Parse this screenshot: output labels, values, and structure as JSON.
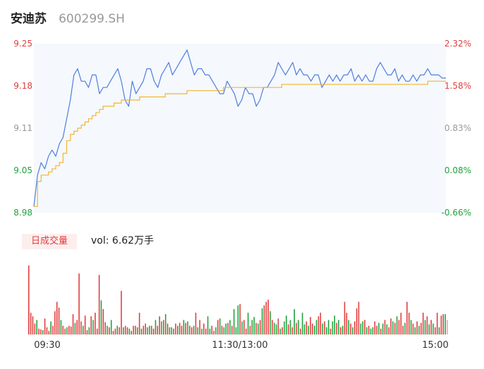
{
  "header": {
    "name": "安迪苏",
    "code": "600299.SH"
  },
  "volume_panel": {
    "tab_label": "日成交量",
    "vol_prefix": "vol:",
    "vol_value": "6.62万手"
  },
  "colors": {
    "price_line": "#4e7ee0",
    "avg_line": "#f2b632",
    "up": "#e23c3c",
    "down": "#1fa33d",
    "area_fill": "#f5f8fd",
    "axis_text": "#999999"
  },
  "chart_data": [
    {
      "type": "line",
      "title": "",
      "x_ticks": [
        "09:30",
        "11:30/13:00",
        "15:00"
      ],
      "y_left_ticks": [
        "9.25",
        "9.18",
        "9.11",
        "9.05",
        "8.98"
      ],
      "y_right_ticks": [
        "2.32%",
        "1.58%",
        "0.83%",
        "0.08%",
        "-0.66%"
      ],
      "ylim": [
        8.98,
        9.25
      ],
      "series": [
        {
          "values": [
            8.99,
            9.04,
            9.06,
            9.05,
            9.07,
            9.08,
            9.07,
            9.09,
            9.1,
            9.13,
            9.16,
            9.2,
            9.21,
            9.19,
            9.19,
            9.18,
            9.2,
            9.2,
            9.17,
            9.18,
            9.18,
            9.19,
            9.2,
            9.21,
            9.19,
            9.16,
            9.15,
            9.19,
            9.17,
            9.18,
            9.19,
            9.21,
            9.21,
            9.19,
            9.18,
            9.2,
            9.21,
            9.22,
            9.2,
            9.21,
            9.22,
            9.23,
            9.24,
            9.22,
            9.2,
            9.21,
            9.21,
            9.2,
            9.2,
            9.19,
            9.18,
            9.17,
            9.17,
            9.19,
            9.18,
            9.17,
            9.15,
            9.16,
            9.18,
            9.17,
            9.17,
            9.15,
            9.16,
            9.18,
            9.18,
            9.19,
            9.2,
            9.22,
            9.21,
            9.2,
            9.21,
            9.22,
            9.2,
            9.21,
            9.2,
            9.2,
            9.19,
            9.2,
            9.2,
            9.18,
            9.19,
            9.2,
            9.19,
            9.2,
            9.19,
            9.2,
            9.2,
            9.21,
            9.19,
            9.2,
            9.19,
            9.2,
            9.19,
            9.19,
            9.21,
            9.22,
            9.21,
            9.2,
            9.2,
            9.21,
            9.19,
            9.2,
            9.19,
            9.19,
            9.2,
            9.19,
            9.2,
            9.2,
            9.21,
            9.2,
            9.2,
            9.2,
            9.195,
            9.195
          ]
        },
        {
          "values": [
            8.99,
            9.03,
            9.04,
            9.04,
            9.045,
            9.05,
            9.055,
            9.06,
            9.075,
            9.095,
            9.105,
            9.11,
            9.115,
            9.12,
            9.125,
            9.13,
            9.135,
            9.14,
            9.145,
            9.15,
            9.15,
            9.15,
            9.155,
            9.155,
            9.16,
            9.16,
            9.16,
            9.16,
            9.16,
            9.165,
            9.165,
            9.165,
            9.165,
            9.165,
            9.165,
            9.165,
            9.17,
            9.17,
            9.17,
            9.17,
            9.17,
            9.17,
            9.175,
            9.175,
            9.175,
            9.175,
            9.175,
            9.175,
            9.175,
            9.175,
            9.175,
            9.175,
            9.18,
            9.18,
            9.18,
            9.18,
            9.18,
            9.18,
            9.18,
            9.18,
            9.18,
            9.18,
            9.18,
            9.18,
            9.18,
            9.18,
            9.18,
            9.18,
            9.185,
            9.185,
            9.185,
            9.185,
            9.185,
            9.185,
            9.185,
            9.185,
            9.185,
            9.185,
            9.185,
            9.185,
            9.185,
            9.185,
            9.185,
            9.185,
            9.185,
            9.185,
            9.185,
            9.185,
            9.185,
            9.185,
            9.185,
            9.185,
            9.185,
            9.185,
            9.185,
            9.185,
            9.185,
            9.185,
            9.185,
            9.185,
            9.185,
            9.185,
            9.185,
            9.185,
            9.185,
            9.185,
            9.185,
            9.185,
            9.19,
            9.19,
            9.19,
            9.19,
            9.19,
            9.19
          ]
        }
      ]
    },
    {
      "type": "bar",
      "title": "",
      "values": [
        95,
        30,
        25,
        15,
        20,
        8,
        7,
        6,
        22,
        10,
        5,
        18,
        12,
        32,
        45,
        37,
        20,
        12,
        8,
        10,
        12,
        11,
        28,
        16,
        20,
        84,
        18,
        12,
        26,
        6,
        10,
        25,
        20,
        30,
        8,
        82,
        47,
        35,
        17,
        12,
        10,
        20,
        5,
        8,
        12,
        10,
        60,
        10,
        12,
        10,
        8,
        5,
        12,
        12,
        10,
        30,
        8,
        12,
        15,
        10,
        12,
        12,
        8,
        20,
        12,
        25,
        18,
        20,
        28,
        15,
        10,
        10,
        8,
        15,
        12,
        16,
        12,
        20,
        16,
        18,
        12,
        10,
        12,
        30,
        10,
        20,
        8,
        15,
        8,
        25,
        8,
        12,
        5,
        10,
        20,
        22,
        12,
        10,
        15,
        16,
        20,
        12,
        35,
        10,
        40,
        42,
        18,
        20,
        8,
        30,
        12,
        20,
        24,
        16,
        15,
        20,
        36,
        40,
        45,
        48,
        32,
        20,
        16,
        14,
        22,
        8,
        10,
        18,
        26,
        14,
        20,
        10,
        35,
        16,
        20,
        8,
        30,
        14,
        18,
        12,
        24,
        15,
        12,
        20,
        25,
        30,
        15,
        18,
        10,
        20,
        8,
        18,
        26,
        16,
        20,
        10,
        12,
        45,
        30,
        20,
        15,
        10,
        18,
        36,
        45,
        15,
        18,
        20,
        10,
        12,
        8,
        10,
        18,
        12,
        16,
        8,
        15,
        20,
        14,
        10,
        22,
        18,
        16,
        25,
        20,
        30,
        12,
        16,
        45,
        30,
        20,
        15,
        10,
        18,
        12,
        16,
        30,
        20,
        25,
        14,
        20,
        15,
        10,
        30,
        10,
        26,
        28,
        28,
        20
      ],
      "up": [
        1,
        1,
        1,
        1,
        0,
        1,
        1,
        0,
        1,
        1,
        1,
        0,
        1,
        1,
        1,
        1,
        0,
        1,
        1,
        0,
        1,
        1,
        1,
        0,
        1,
        1,
        1,
        0,
        1,
        1,
        0,
        1,
        0,
        1,
        1,
        1,
        0,
        1,
        1,
        0,
        1,
        0,
        1,
        1,
        0,
        1,
        1,
        0,
        1,
        1,
        0,
        0,
        1,
        1,
        0,
        1,
        0,
        1,
        1,
        0,
        0,
        1,
        1,
        0,
        1,
        1,
        0,
        1,
        0,
        1,
        0,
        0,
        1,
        1,
        0,
        1,
        1,
        0,
        1,
        0,
        1,
        1,
        0,
        1,
        0,
        1,
        0,
        1,
        1,
        0,
        0,
        1,
        1,
        0,
        1,
        0,
        1,
        0,
        0,
        1,
        0,
        1,
        0,
        0,
        0,
        1,
        0,
        1,
        1,
        0,
        1,
        0,
        0,
        1,
        0,
        1,
        0,
        1,
        1,
        1,
        0,
        1,
        0,
        0,
        1,
        0,
        1,
        0,
        0,
        1,
        0,
        1,
        0,
        1,
        0,
        1,
        0,
        0,
        1,
        0,
        1,
        1,
        0,
        0,
        1,
        1,
        0,
        1,
        0,
        0,
        1,
        0,
        0,
        1,
        0,
        1,
        0,
        1,
        1,
        0,
        1,
        0,
        1,
        1,
        1,
        0,
        0,
        1,
        0,
        1,
        0,
        0,
        1,
        1,
        0,
        1,
        0,
        1,
        0,
        1,
        1,
        0,
        1,
        0,
        1,
        1,
        1,
        0,
        1,
        1,
        0,
        1,
        0,
        1,
        0,
        1,
        1,
        0,
        1,
        0,
        1,
        0,
        1,
        1,
        0,
        1,
        1,
        0,
        1
      ],
      "x_ticks": [
        "09:30",
        "11:30/13:00",
        "15:00"
      ]
    }
  ]
}
